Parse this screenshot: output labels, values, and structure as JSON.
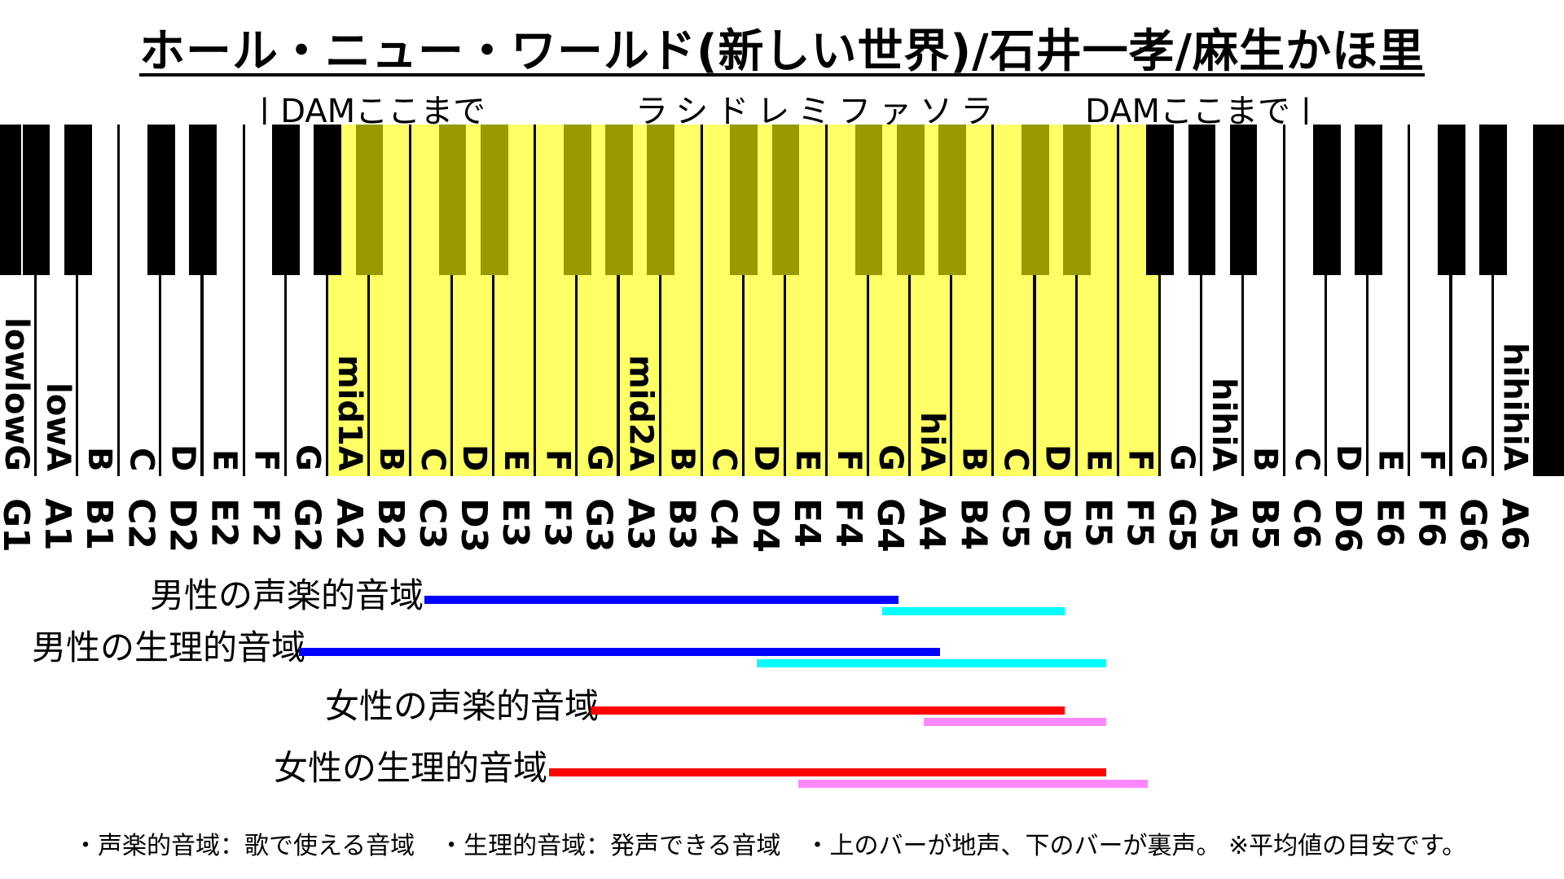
{
  "title": "ホール・ニュー・ワールド(新しい世界)/石井一孝/麻生かほ里",
  "top_labels": {
    "dam_left": "| DAMここまで",
    "scale": "ラシドレミファソラ",
    "dam_right": "DAMここまで |"
  },
  "colors": {
    "highlight": "#ffff66",
    "highlight_black": "#999900",
    "male_chest": "#0000ff",
    "male_falsetto": "#00ffff",
    "female_chest": "#ff0000",
    "female_falsetto": "#ff88ff"
  },
  "key_labels": [
    "lowlowG",
    "lowA",
    "B",
    "C",
    "D",
    "E",
    "F",
    "G",
    "mid1A",
    "B",
    "C",
    "D",
    "E",
    "F",
    "G",
    "mid2A",
    "B",
    "C",
    "D",
    "E",
    "F",
    "G",
    "hiA",
    "B",
    "C",
    "D",
    "E",
    "F",
    "G",
    "hihiA",
    "B",
    "C",
    "D",
    "E",
    "F",
    "G",
    "hihihiA"
  ],
  "note_names": [
    "G1",
    "A1",
    "B1",
    "C2",
    "D2",
    "E2",
    "F2",
    "G2",
    "A2",
    "B2",
    "C3",
    "D3",
    "E3",
    "F3",
    "G3",
    "A3",
    "B3",
    "C4",
    "D4",
    "E4",
    "F4",
    "G4",
    "A4",
    "B4",
    "C5",
    "D5",
    "E5",
    "F5",
    "G5",
    "A5",
    "B5",
    "C6",
    "D6",
    "E6",
    "F6",
    "G6",
    "A6"
  ],
  "highlight_range": {
    "start": "A2",
    "end": "F5"
  },
  "ranges": [
    {
      "label": "男性の声楽的音域",
      "chest": {
        "from": "C3",
        "to": "G4"
      },
      "falsetto": {
        "from": "G4",
        "to": "D5"
      }
    },
    {
      "label": "男性の生理的音域",
      "chest": {
        "from": "G2",
        "to": "A4"
      },
      "falsetto": {
        "from": "D4",
        "to": "E5"
      }
    },
    {
      "label": "女性の声楽的音域",
      "chest": {
        "from": "G3",
        "to": "D5"
      },
      "falsetto": {
        "from": "A4",
        "to": "E5"
      }
    },
    {
      "label": "女性の生理的音域",
      "chest": {
        "from": "F3",
        "to": "E5"
      },
      "falsetto": {
        "from": "E4",
        "to": "F5"
      }
    }
  ],
  "footnote": "・声楽的音域：歌で使える音域　・生理的音域：発声できる音域　・上のバーが地声、下のバーが裏声。 ※平均値の目安です。"
}
